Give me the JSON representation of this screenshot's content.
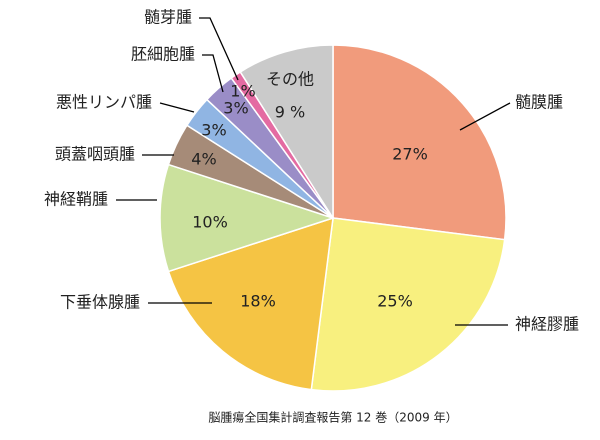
{
  "chart_data": {
    "type": "pie",
    "categories": [
      "髄膜腫",
      "神経膠腫",
      "下垂体腺腫",
      "神経鞘腫",
      "頭蓋咽頭腫",
      "悪性リンパ腫",
      "胚細胞腫",
      "髄芽腫",
      "その他"
    ],
    "values": [
      27,
      25,
      18,
      10,
      4,
      3,
      3,
      1,
      9
    ],
    "value_labels": [
      "27%",
      "25%",
      "18%",
      "10%",
      "4%",
      "3%",
      "3%",
      "1%",
      "9 %"
    ],
    "colors": [
      "#f19b7c",
      "#f8f07f",
      "#f5c444",
      "#cbe19d",
      "#a68b78",
      "#90b5e3",
      "#9a8dc7",
      "#e46ba2",
      "#cacaca"
    ],
    "source": "脳腫瘍全国集計調査報告第 12 巻（2009 年）"
  }
}
